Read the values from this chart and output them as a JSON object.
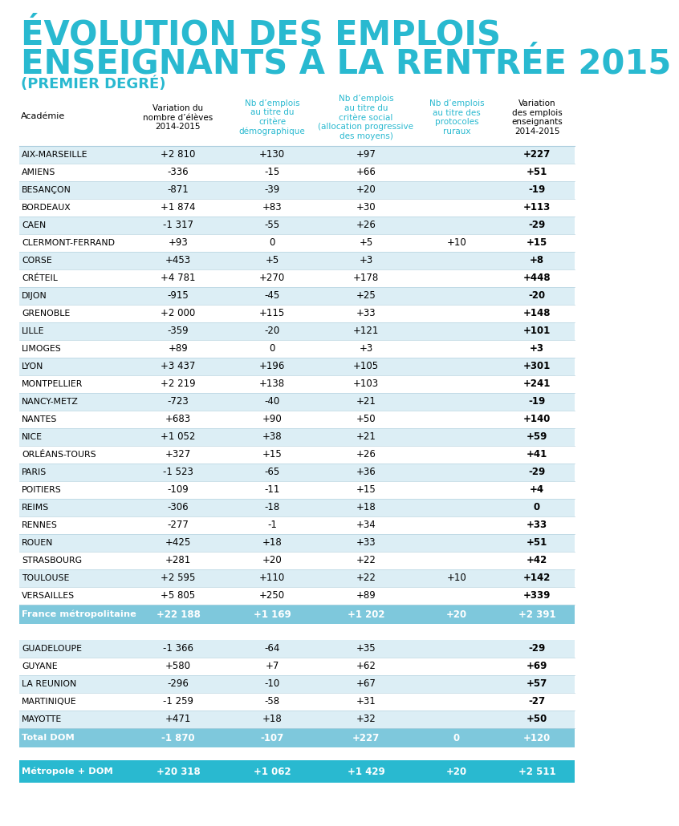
{
  "title_line1": "ÉVOLUTION DES EMPLOIS",
  "title_line2": "ENSEIGNANTS À LA RENTRÉE 2015",
  "subtitle": "(PREMIER DEGRÉ)",
  "title_color": "#29b9d0",
  "col_headers": [
    "Académie",
    "Variation du\nnombre d’élèves\n2014-2015",
    "Nb d’emplois\nau titre du\ncritère\ndémographique",
    "Nb d’emplois\nau titre du\ncritère social\n(allocation progressive\ndes moyens)",
    "Nb d’emplois\nau titre des\nprotocoles\nruraux",
    "Variation\ndes emplois\nenseignants\n2014-2015"
  ],
  "col_header_colors": [
    "#000000",
    "#000000",
    "#29b9d0",
    "#29b9d0",
    "#29b9d0",
    "#000000"
  ],
  "metropolitaine_rows": [
    [
      "AIX-MARSEILLE",
      "+2 810",
      "+130",
      "+97",
      "",
      "+227"
    ],
    [
      "AMIENS",
      "-336",
      "-15",
      "+66",
      "",
      "+51"
    ],
    [
      "BESANÇON",
      "-871",
      "-39",
      "+20",
      "",
      "-19"
    ],
    [
      "BORDEAUX",
      "+1 874",
      "+83",
      "+30",
      "",
      "+113"
    ],
    [
      "CAEN",
      "-1 317",
      "-55",
      "+26",
      "",
      "-29"
    ],
    [
      "CLERMONT-FERRAND",
      "+93",
      "0",
      "+5",
      "+10",
      "+15"
    ],
    [
      "CORSE",
      "+453",
      "+5",
      "+3",
      "",
      "+8"
    ],
    [
      "CRÉTEIL",
      "+4 781",
      "+270",
      "+178",
      "",
      "+448"
    ],
    [
      "DIJON",
      "-915",
      "-45",
      "+25",
      "",
      "-20"
    ],
    [
      "GRENOBLE",
      "+2 000",
      "+115",
      "+33",
      "",
      "+148"
    ],
    [
      "LILLE",
      "-359",
      "-20",
      "+121",
      "",
      "+101"
    ],
    [
      "LIMOGES",
      "+89",
      "0",
      "+3",
      "",
      "+3"
    ],
    [
      "LYON",
      "+3 437",
      "+196",
      "+105",
      "",
      "+301"
    ],
    [
      "MONTPELLIER",
      "+2 219",
      "+138",
      "+103",
      "",
      "+241"
    ],
    [
      "NANCY-METZ",
      "-723",
      "-40",
      "+21",
      "",
      "-19"
    ],
    [
      "NANTES",
      "+683",
      "+90",
      "+50",
      "",
      "+140"
    ],
    [
      "NICE",
      "+1 052",
      "+38",
      "+21",
      "",
      "+59"
    ],
    [
      "ORLÉANS-TOURS",
      "+327",
      "+15",
      "+26",
      "",
      "+41"
    ],
    [
      "PARIS",
      "-1 523",
      "-65",
      "+36",
      "",
      "-29"
    ],
    [
      "POITIERS",
      "-109",
      "-11",
      "+15",
      "",
      "+4"
    ],
    [
      "REIMS",
      "-306",
      "-18",
      "+18",
      "",
      "0"
    ],
    [
      "RENNES",
      "-277",
      "-1",
      "+34",
      "",
      "+33"
    ],
    [
      "ROUEN",
      "+425",
      "+18",
      "+33",
      "",
      "+51"
    ],
    [
      "STRASBOURG",
      "+281",
      "+20",
      "+22",
      "",
      "+42"
    ],
    [
      "TOULOUSE",
      "+2 595",
      "+110",
      "+22",
      "+10",
      "+142"
    ],
    [
      "VERSAILLES",
      "+5 805",
      "+250",
      "+89",
      "",
      "+339"
    ]
  ],
  "france_metro_row": [
    "France métropolitaine",
    "+22 188",
    "+1 169",
    "+1 202",
    "+20",
    "+2 391"
  ],
  "dom_rows": [
    [
      "GUADELOUPE",
      "-1 366",
      "-64",
      "+35",
      "",
      "-29"
    ],
    [
      "GUYANE",
      "+580",
      "+7",
      "+62",
      "",
      "+69"
    ],
    [
      "LA REUNION",
      "-296",
      "-10",
      "+67",
      "",
      "+57"
    ],
    [
      "MARTINIQUE",
      "-1 259",
      "-58",
      "+31",
      "",
      "-27"
    ],
    [
      "MAYOTTE",
      "+471",
      "+18",
      "+32",
      "",
      "+50"
    ]
  ],
  "total_dom_row": [
    "Total DOM",
    "-1 870",
    "-107",
    "+227",
    "0",
    "+120"
  ],
  "total_row": [
    "Métropole + DOM",
    "+20 318",
    "+1 062",
    "+1 429",
    "+20",
    "+2 511"
  ],
  "row_colors": [
    "#dceef5",
    "#ffffff"
  ],
  "metro_summary_color": "#7ec8dc",
  "dom_summary_color": "#7ec8dc",
  "final_total_color": "#29b9d0",
  "bg_color": "#ffffff"
}
